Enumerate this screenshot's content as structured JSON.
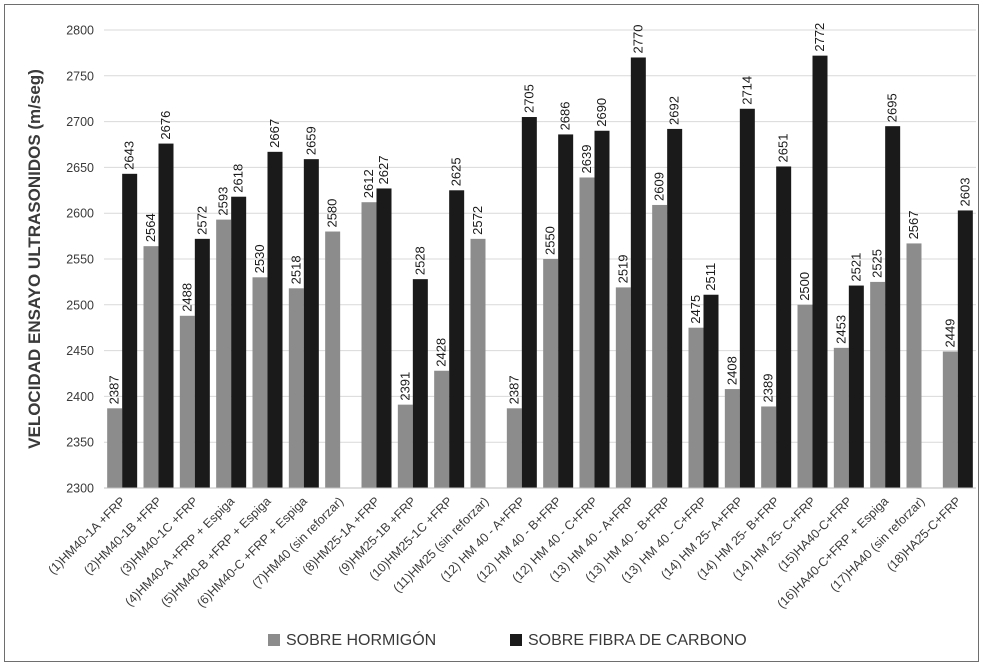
{
  "chart_data": {
    "type": "bar",
    "title": "",
    "xlabel": "",
    "ylabel": "VELOCIDAD ENSAYO ULTRASONIDOS (m/seg)",
    "ylim": [
      2300,
      2800
    ],
    "yticks": [
      2300,
      2350,
      2400,
      2450,
      2500,
      2550,
      2600,
      2650,
      2700,
      2750,
      2800
    ],
    "grid": true,
    "legend_position": "bottom",
    "categories": [
      "(1)HM40-1A +FRP",
      "(2)HM40-1B +FRP",
      "(3)HM40-1C +FRP",
      "(4)HM40-A +FRP + Espiga",
      "(5)HM40-B +FRP + Espiga",
      "(6)HM40-C +FRP + Espiga",
      "(7)HM40 (sin reforzar)",
      "(8)HM25-1A +FRP",
      "(9)HM25-1B +FRP",
      "(10)HM25-1C +FRP",
      "(11)HM25 (sin reforzar)",
      "(12) HM 40 - A+FRP",
      "(12) HM 40 - B+FRP",
      "(12) HM 40 - C+FRP",
      "(13) HM 40 - A+FRP",
      "(13) HM 40 - B+FRP",
      "(13) HM 40 - C+FRP",
      "(14) HM 25- A+FRP",
      "(14) HM 25- B+FRP",
      "(14) HM 25- C+FRP",
      "(15)HA40-C+FRP",
      "(16)HA40-C+FRP + Espiga",
      "(17)HA40 (sin reforzar)",
      "(18)HA25-C+FRP"
    ],
    "series": [
      {
        "name": "SOBRE HORMIGÓN",
        "color": "#8c8c8c",
        "values": [
          2387,
          2564,
          2488,
          2593,
          2530,
          2518,
          2580,
          2612,
          2391,
          2428,
          2572,
          2387,
          2550,
          2639,
          2519,
          2609,
          2475,
          2408,
          2389,
          2500,
          2453,
          2525,
          2567,
          2449
        ]
      },
      {
        "name": "SOBRE FIBRA DE CARBONO",
        "color": "#1a1a1a",
        "values": [
          2643,
          2676,
          2572,
          2618,
          2667,
          2659,
          null,
          2627,
          2528,
          2625,
          null,
          2705,
          2686,
          2690,
          2770,
          2692,
          2511,
          2714,
          2651,
          2772,
          2521,
          2695,
          null,
          2603
        ]
      }
    ]
  }
}
